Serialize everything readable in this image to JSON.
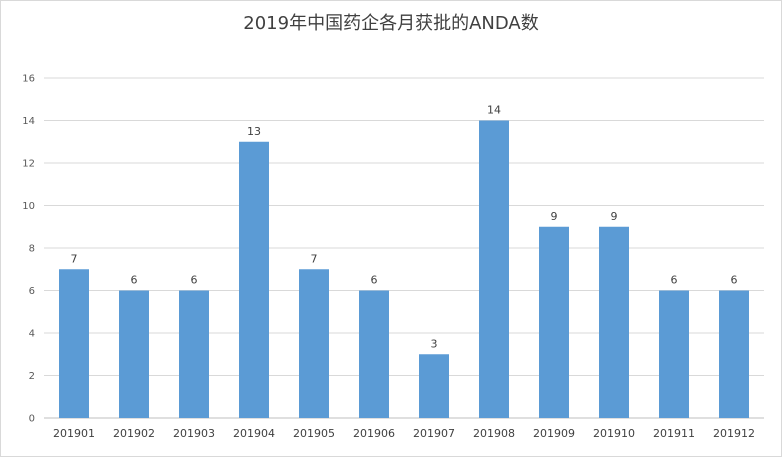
{
  "chart_data": {
    "type": "bar",
    "title": "2019年中国药企各月获批的ANDA数",
    "xlabel": "",
    "ylabel": "",
    "ylim": [
      0,
      16
    ],
    "yticks": [
      0,
      2,
      4,
      6,
      8,
      10,
      12,
      14,
      16
    ],
    "grid": true,
    "legend": "none",
    "bar_color": "#5B9BD5",
    "categories": [
      "201901",
      "201902",
      "201903",
      "201904",
      "201905",
      "201906",
      "201907",
      "201908",
      "201909",
      "201910",
      "201911",
      "201912"
    ],
    "values": [
      7,
      6,
      6,
      13,
      7,
      6,
      3,
      14,
      9,
      9,
      6,
      6
    ]
  }
}
